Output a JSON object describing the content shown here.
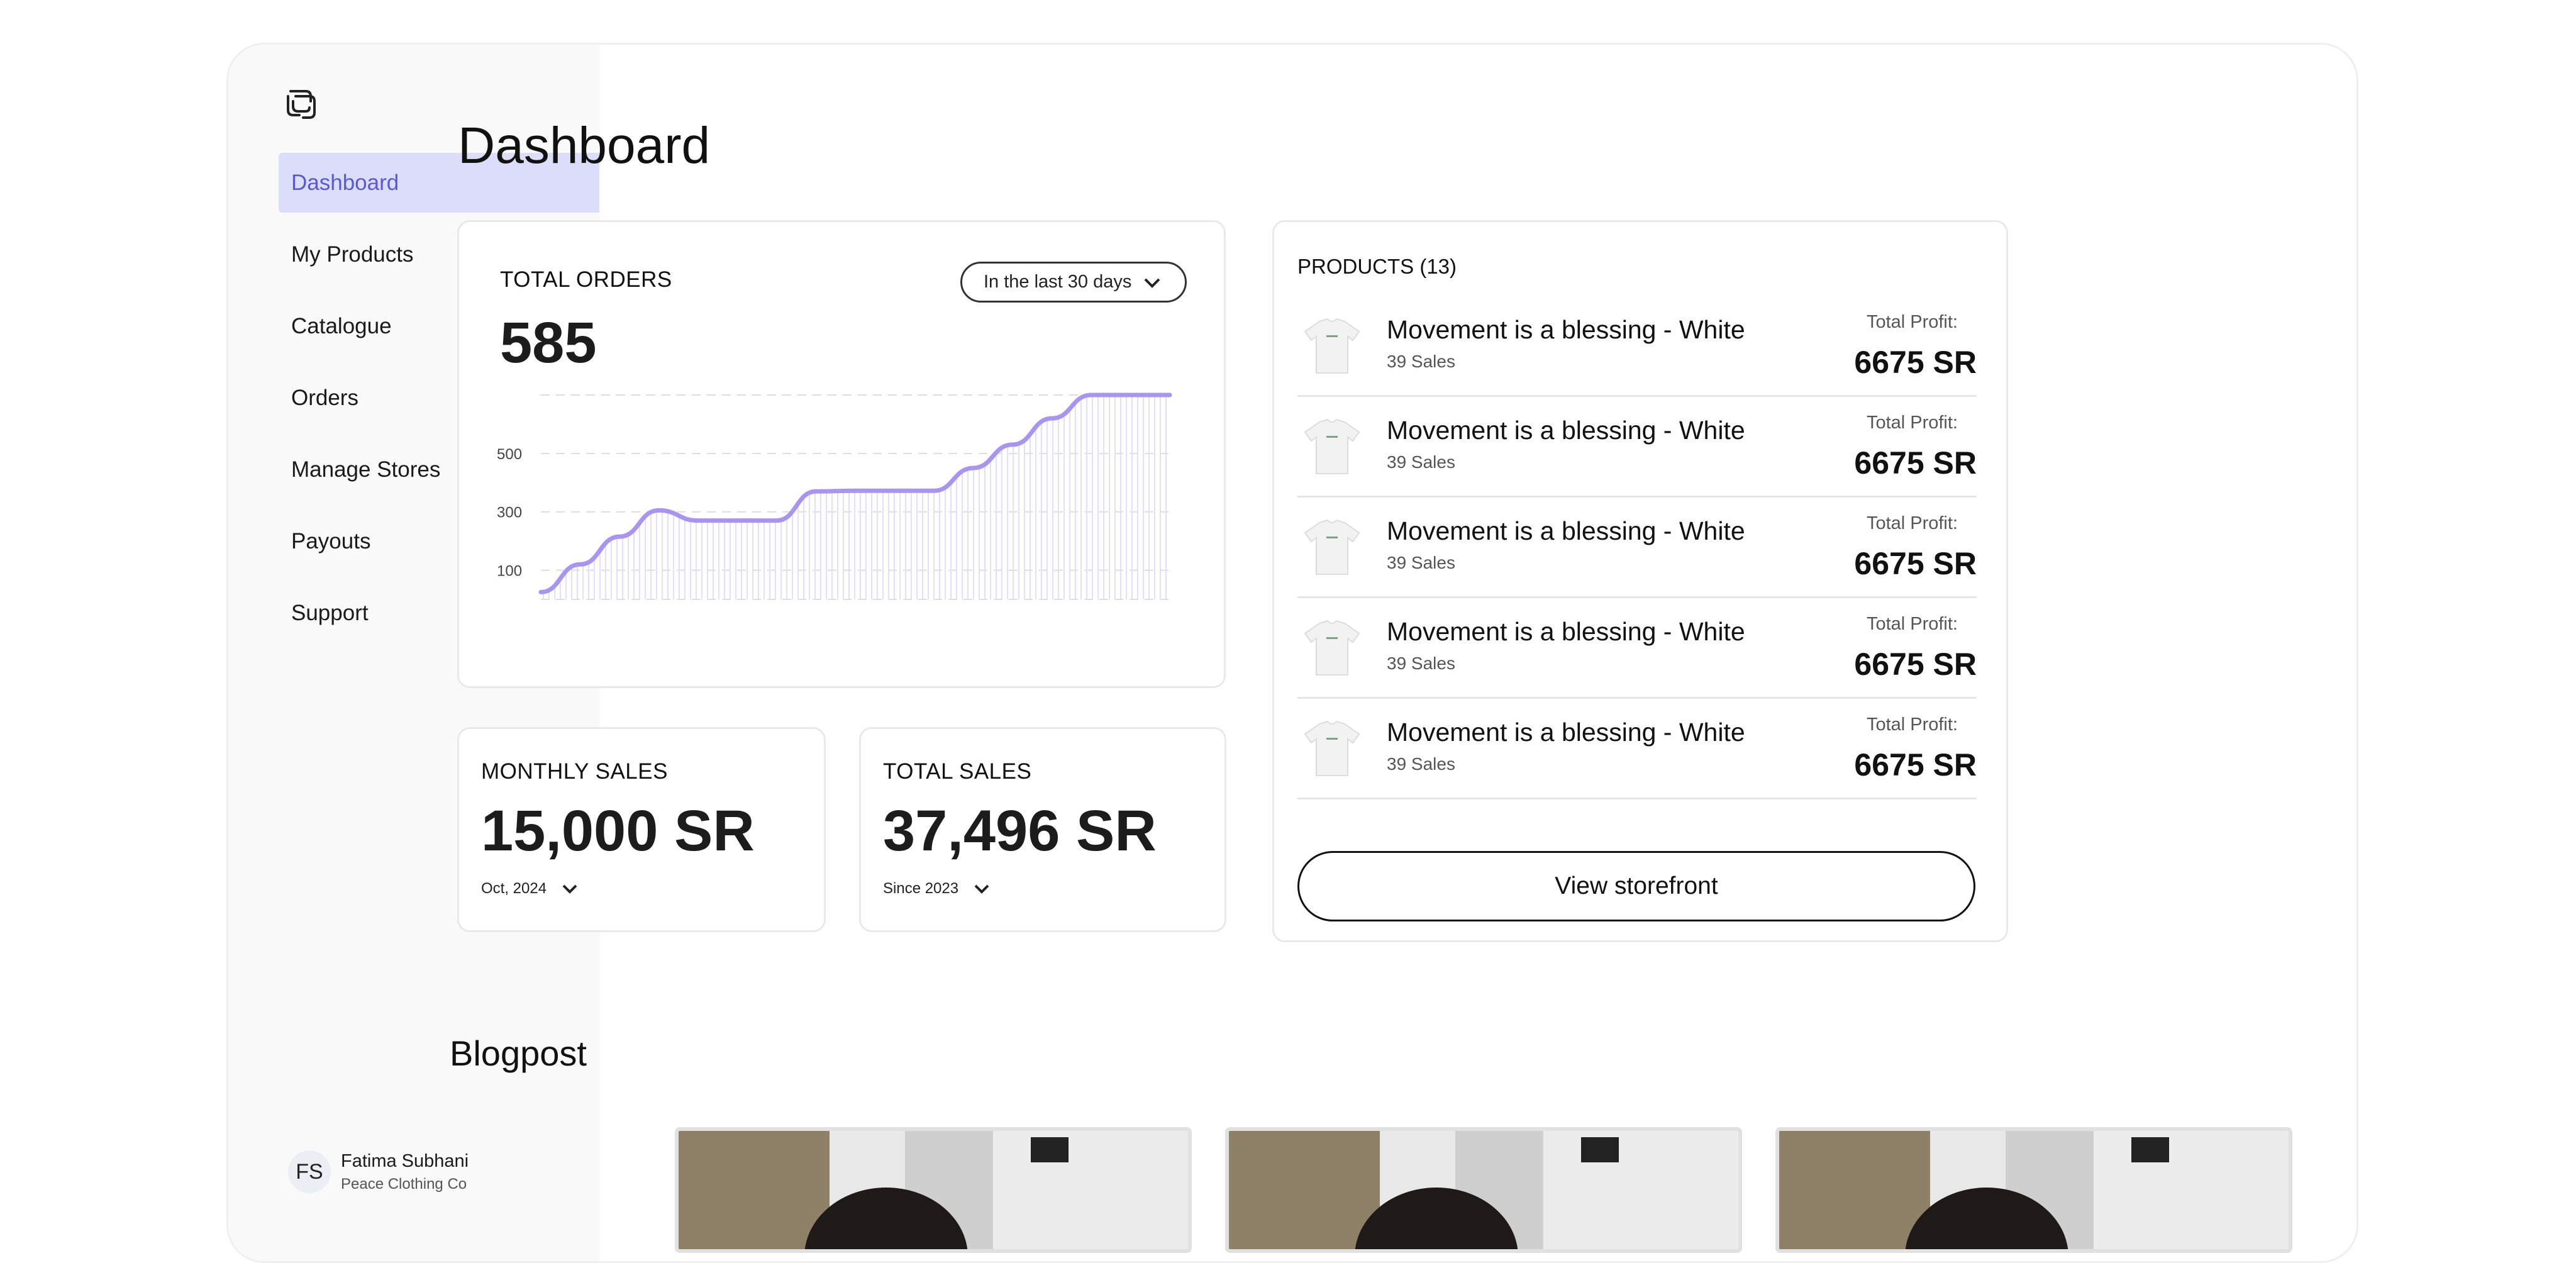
{
  "sidebar": {
    "items": [
      {
        "label": "Dashboard",
        "active": true
      },
      {
        "label": "My Products"
      },
      {
        "label": "Catalogue"
      },
      {
        "label": "Orders"
      },
      {
        "label": "Manage Stores"
      },
      {
        "label": "Payouts"
      },
      {
        "label": "Support"
      }
    ],
    "user": {
      "initials": "FS",
      "name": "Fatima Subhani",
      "store": "Peace Clothing Co"
    }
  },
  "main": {
    "title": "Dashboard",
    "total_orders": {
      "label": "TOTAL ORDERS",
      "value": "585",
      "range": "In the last 30 days"
    },
    "monthly_sales": {
      "label": "MONTHLY SALES",
      "value": "15,000 SR",
      "filter": "Oct, 2024"
    },
    "total_sales": {
      "label": "TOTAL SALES",
      "value": "37,496 SR",
      "filter": "Since 2023"
    },
    "products": {
      "title": "PRODUCTS (13)",
      "items": [
        {
          "name": "Movement is a blessing - White",
          "sales": "39 Sales",
          "profit_label": "Total Profit:",
          "profit": "6675 SR"
        },
        {
          "name": "Movement is a blessing - White",
          "sales": "39 Sales",
          "profit_label": "Total Profit:",
          "profit": "6675 SR"
        },
        {
          "name": "Movement is a blessing - White",
          "sales": "39 Sales",
          "profit_label": "Total Profit:",
          "profit": "6675 SR"
        },
        {
          "name": "Movement is a blessing - White",
          "sales": "39 Sales",
          "profit_label": "Total Profit:",
          "profit": "6675 SR"
        },
        {
          "name": "Movement is a blessing - White",
          "sales": "39 Sales",
          "profit_label": "Total Profit:",
          "profit": "6675 SR"
        }
      ],
      "button": "View storefront"
    },
    "blog": {
      "title": "Blogpost"
    }
  },
  "colors": {
    "accent": "#a996ec",
    "active_bg": "#dcdcfb",
    "active_text": "#5a5ad0"
  },
  "chart_data": {
    "type": "area",
    "y_ticks": [
      "500",
      "300",
      "100"
    ],
    "ylim": [
      0,
      700
    ],
    "x": [
      0,
      1,
      2,
      3,
      4,
      5,
      6,
      7,
      8,
      9,
      10,
      11,
      12,
      13,
      14,
      15,
      16
    ],
    "values": [
      25,
      120,
      215,
      305,
      270,
      270,
      270,
      370,
      372,
      372,
      372,
      450,
      530,
      620,
      700,
      700,
      700
    ],
    "grid": true
  }
}
